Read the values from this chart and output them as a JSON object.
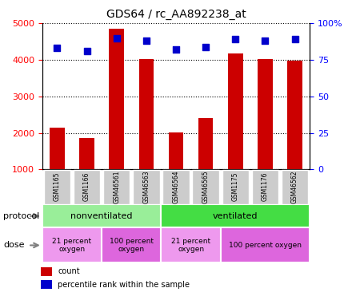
{
  "title": "GDS64 / rc_AA892238_at",
  "samples": [
    "GSM1165",
    "GSM1166",
    "GSM46561",
    "GSM46563",
    "GSM46564",
    "GSM46565",
    "GSM1175",
    "GSM1176",
    "GSM46562"
  ],
  "counts": [
    2150,
    1850,
    4850,
    4020,
    2020,
    2400,
    4180,
    4030,
    3980
  ],
  "percentiles": [
    83,
    81,
    90,
    88,
    82,
    84,
    89,
    88,
    89
  ],
  "ylim_left": [
    1000,
    5000
  ],
  "ylim_right": [
    0,
    100
  ],
  "yticks_left": [
    1000,
    2000,
    3000,
    4000,
    5000
  ],
  "yticks_right": [
    0,
    25,
    50,
    75,
    100
  ],
  "bar_color": "#cc0000",
  "dot_color": "#0000cc",
  "protocol_groups": [
    {
      "label": "nonventilated",
      "start": 0,
      "end": 4,
      "color": "#99ee99"
    },
    {
      "label": "ventilated",
      "start": 4,
      "end": 9,
      "color": "#44dd44"
    }
  ],
  "dose_groups": [
    {
      "label": "21 percent\noxygen",
      "start": 0,
      "end": 2,
      "color": "#ee99ee"
    },
    {
      "label": "100 percent\noxygen",
      "start": 2,
      "end": 4,
      "color": "#dd66dd"
    },
    {
      "label": "21 percent\noxygen",
      "start": 4,
      "end": 6,
      "color": "#ee99ee"
    },
    {
      "label": "100 percent oxygen",
      "start": 6,
      "end": 9,
      "color": "#dd66dd"
    }
  ],
  "sample_box_color": "#cccccc",
  "legend_items": [
    {
      "color": "#cc0000",
      "label": "count"
    },
    {
      "color": "#0000cc",
      "label": "percentile rank within the sample"
    }
  ]
}
